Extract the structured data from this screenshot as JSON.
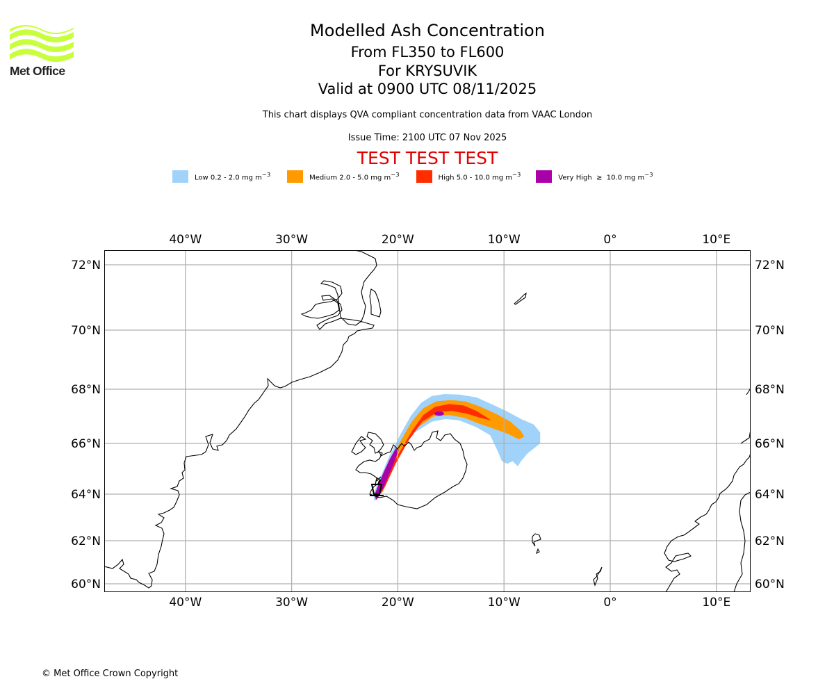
{
  "logo": {
    "name": "Met Office",
    "icon": "met-office-waves-logo"
  },
  "header": {
    "title": "Modelled Ash Concentration",
    "levels": "From FL350 to FL600",
    "volcano": "For KRYSUVIK",
    "valid": "Valid at 0900 UTC 08/11/2025",
    "description": "This chart displays QVA compliant concentration data from VAAC London",
    "issue_time": "Issue Time: 2100 UTC 07 Nov 2025",
    "test_banner": "TEST TEST TEST"
  },
  "legend": [
    {
      "label": "Low 0.2 - 2.0 mg m",
      "sup": "−3",
      "color": "#a0d2fa"
    },
    {
      "label": "Medium 2.0 - 5.0 mg m",
      "sup": "−3",
      "color": "#ff9b00"
    },
    {
      "label": "High 5.0 - 10.0 mg m",
      "sup": "−3",
      "color": "#ff2d00"
    },
    {
      "label": "Very High  ≥  10.0 mg m",
      "sup": "−3",
      "color": "#aa00aa"
    }
  ],
  "chart_data": {
    "type": "map",
    "title": "Modelled Ash Concentration",
    "extent": {
      "lon": [
        -47.7,
        13.2
      ],
      "lat": [
        59.8,
        72.5
      ]
    },
    "grid": true,
    "lon_ticks": [
      {
        "value": -40,
        "label": "40°W"
      },
      {
        "value": -30,
        "label": "30°W"
      },
      {
        "value": -20,
        "label": "20°W"
      },
      {
        "value": -10,
        "label": "10°W"
      },
      {
        "value": 0,
        "label": "0°"
      },
      {
        "value": 10,
        "label": "10°E"
      }
    ],
    "lat_ticks": [
      {
        "value": 72,
        "label": "72°N"
      },
      {
        "value": 70,
        "label": "70°N"
      },
      {
        "value": 68,
        "label": "68°N"
      },
      {
        "value": 66,
        "label": "66°N"
      },
      {
        "value": 64,
        "label": "64°N"
      },
      {
        "value": 62,
        "label": "62°N"
      },
      {
        "value": 60,
        "label": "60°N"
      }
    ],
    "volcano": {
      "name": "KRYSUVIK",
      "lon": -22.1,
      "lat": 63.9,
      "symbol": "volcano-triangle"
    },
    "ash_levels": [
      {
        "name": "Low",
        "range": "0.2-2.0",
        "color": "#a0d2fa",
        "polygon": [
          [
            -22.2,
            63.7
          ],
          [
            -21.6,
            64.0
          ],
          [
            -20.8,
            64.8
          ],
          [
            -19.6,
            65.8
          ],
          [
            -18.4,
            66.4
          ],
          [
            -16.8,
            66.8
          ],
          [
            -15.5,
            66.9
          ],
          [
            -14.2,
            66.85
          ],
          [
            -12.6,
            66.6
          ],
          [
            -11.3,
            66.3
          ],
          [
            -10.6,
            65.7
          ],
          [
            -10.2,
            65.3
          ],
          [
            -9.7,
            65.2
          ],
          [
            -9.2,
            65.3
          ],
          [
            -8.7,
            65.1
          ],
          [
            -8.4,
            65.3
          ],
          [
            -7.8,
            65.6
          ],
          [
            -7.2,
            65.8
          ],
          [
            -6.6,
            66.0
          ],
          [
            -6.6,
            66.4
          ],
          [
            -7.2,
            66.7
          ],
          [
            -8.4,
            66.9
          ],
          [
            -9.8,
            67.2
          ],
          [
            -11.2,
            67.45
          ],
          [
            -12.6,
            67.7
          ],
          [
            -14.2,
            67.8
          ],
          [
            -15.6,
            67.82
          ],
          [
            -16.8,
            67.75
          ],
          [
            -17.8,
            67.5
          ],
          [
            -18.8,
            67.0
          ],
          [
            -19.8,
            66.3
          ],
          [
            -20.9,
            65.4
          ],
          [
            -21.7,
            64.6
          ],
          [
            -22.3,
            64.0
          ]
        ]
      },
      {
        "name": "Medium",
        "range": "2.0-5.0",
        "color": "#ff9b00",
        "polygon": [
          [
            -22.1,
            63.75
          ],
          [
            -21.4,
            64.1
          ],
          [
            -20.5,
            65.0
          ],
          [
            -19.4,
            65.95
          ],
          [
            -18.1,
            66.6
          ],
          [
            -16.6,
            67.0
          ],
          [
            -15.2,
            67.05
          ],
          [
            -13.8,
            66.95
          ],
          [
            -12.5,
            66.75
          ],
          [
            -11.0,
            66.55
          ],
          [
            -9.6,
            66.35
          ],
          [
            -8.6,
            66.15
          ],
          [
            -8.1,
            66.25
          ],
          [
            -8.4,
            66.45
          ],
          [
            -9.4,
            66.8
          ],
          [
            -10.8,
            67.1
          ],
          [
            -12.2,
            67.35
          ],
          [
            -13.6,
            67.55
          ],
          [
            -15.0,
            67.6
          ],
          [
            -16.4,
            67.55
          ],
          [
            -17.6,
            67.3
          ],
          [
            -18.7,
            66.8
          ],
          [
            -19.8,
            66.05
          ],
          [
            -20.9,
            65.15
          ],
          [
            -21.7,
            64.45
          ],
          [
            -22.2,
            64.0
          ]
        ]
      },
      {
        "name": "High",
        "range": "5.0-10.0",
        "color": "#ff2d00",
        "polygon": [
          [
            -22.0,
            63.8
          ],
          [
            -21.2,
            64.3
          ],
          [
            -20.2,
            65.2
          ],
          [
            -19.0,
            66.1
          ],
          [
            -17.7,
            66.8
          ],
          [
            -16.3,
            67.15
          ],
          [
            -14.9,
            67.2
          ],
          [
            -13.5,
            67.1
          ],
          [
            -12.3,
            66.95
          ],
          [
            -11.2,
            66.85
          ],
          [
            -11.6,
            66.95
          ],
          [
            -12.6,
            67.2
          ],
          [
            -13.8,
            67.4
          ],
          [
            -15.2,
            67.45
          ],
          [
            -16.5,
            67.35
          ],
          [
            -17.6,
            67.05
          ],
          [
            -18.6,
            66.5
          ],
          [
            -19.7,
            65.75
          ],
          [
            -20.8,
            64.95
          ],
          [
            -21.6,
            64.3
          ],
          [
            -22.1,
            63.95
          ]
        ]
      },
      {
        "name": "Very High",
        "range": ">=10.0",
        "color": "#aa00aa",
        "polygon": [
          [
            -22.0,
            63.75
          ],
          [
            -21.4,
            64.2
          ],
          [
            -20.9,
            64.7
          ],
          [
            -20.3,
            65.3
          ],
          [
            -19.9,
            65.75
          ],
          [
            -20.2,
            65.8
          ],
          [
            -20.8,
            65.35
          ],
          [
            -21.4,
            64.8
          ],
          [
            -21.9,
            64.3
          ],
          [
            -22.2,
            63.95
          ]
        ],
        "spots": [
          [
            -16.1,
            67.1
          ]
        ]
      }
    ]
  },
  "footer": {
    "copyright": "© Met Office Crown Copyright"
  }
}
